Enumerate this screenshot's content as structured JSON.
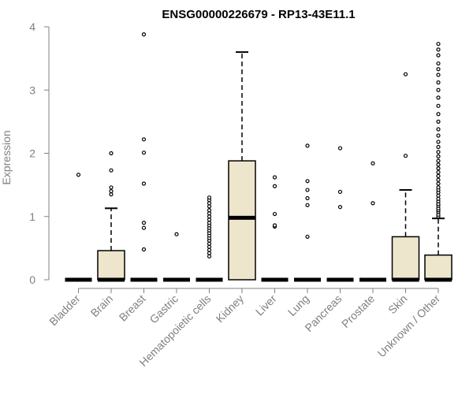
{
  "chart_data": {
    "type": "box",
    "title": "ENSG00000226679 - RP13-43E11.1",
    "xlabel": "",
    "ylabel": "Expression",
    "ylim": [
      0,
      4
    ],
    "yticks": [
      0,
      1,
      2,
      3,
      4
    ],
    "grid": false,
    "colors": {
      "box_fill": "#ede6cd",
      "box_stroke": "#000000",
      "axis": "#808080",
      "title": "#000000"
    },
    "categories": [
      "Bladder",
      "Brain",
      "Breast",
      "Gastric",
      "Hematopoietic cells",
      "Kidney",
      "Liver",
      "Lung",
      "Pancreas",
      "Prostate",
      "Skin",
      "Unknown / Other"
    ],
    "boxes": [
      {
        "q1": 0,
        "median": 0,
        "q3": 0,
        "whisker_low": 0,
        "whisker_high": 0,
        "outliers": [
          1.66
        ]
      },
      {
        "q1": 0,
        "median": 0,
        "q3": 0.46,
        "whisker_low": 0,
        "whisker_high": 1.13,
        "outliers": [
          1.35,
          1.4,
          1.46,
          1.73,
          2.0
        ]
      },
      {
        "q1": 0,
        "median": 0,
        "q3": 0,
        "whisker_low": 0,
        "whisker_high": 0,
        "outliers": [
          0.48,
          0.82,
          0.9,
          1.52,
          2.01,
          2.22,
          3.88
        ]
      },
      {
        "q1": 0,
        "median": 0,
        "q3": 0,
        "whisker_low": 0,
        "whisker_high": 0,
        "outliers": [
          0.72
        ]
      },
      {
        "q1": 0,
        "median": 0,
        "q3": 0,
        "whisker_low": 0,
        "whisker_high": 0,
        "outliers": [
          0.37,
          0.42,
          0.47,
          0.52,
          0.57,
          0.62,
          0.66,
          0.7,
          0.74,
          0.78,
          0.82,
          0.86,
          0.9,
          0.95,
          1.0,
          1.05,
          1.1,
          1.16,
          1.21,
          1.26,
          1.3
        ]
      },
      {
        "q1": 0,
        "median": 0.98,
        "q3": 1.88,
        "whisker_low": 0,
        "whisker_high": 3.6,
        "outliers": []
      },
      {
        "q1": 0,
        "median": 0,
        "q3": 0,
        "whisker_low": 0,
        "whisker_high": 0,
        "outliers": [
          0.84,
          0.86,
          1.04,
          1.48,
          1.62
        ]
      },
      {
        "q1": 0,
        "median": 0,
        "q3": 0,
        "whisker_low": 0,
        "whisker_high": 0,
        "outliers": [
          0.68,
          1.18,
          1.29,
          1.42,
          1.56,
          2.12
        ]
      },
      {
        "q1": 0,
        "median": 0,
        "q3": 0,
        "whisker_low": 0,
        "whisker_high": 0,
        "outliers": [
          1.15,
          1.39,
          2.08
        ]
      },
      {
        "q1": 0,
        "median": 0,
        "q3": 0,
        "whisker_low": 0,
        "whisker_high": 0,
        "outliers": [
          1.21,
          1.84
        ]
      },
      {
        "q1": 0,
        "median": 0,
        "q3": 0.68,
        "whisker_low": 0,
        "whisker_high": 1.42,
        "outliers": [
          1.96,
          3.25
        ]
      },
      {
        "q1": 0,
        "median": 0,
        "q3": 0.39,
        "whisker_low": 0,
        "whisker_high": 0.97,
        "outliers": [
          1.0,
          1.03,
          1.07,
          1.1,
          1.13,
          1.17,
          1.2,
          1.24,
          1.28,
          1.33,
          1.38,
          1.42,
          1.46,
          1.52,
          1.58,
          1.64,
          1.7,
          1.76,
          1.82,
          1.88,
          1.95,
          2.02,
          2.1,
          2.18,
          2.28,
          2.38,
          2.5,
          2.62,
          2.75,
          2.88,
          3.0,
          3.12,
          3.24,
          3.33,
          3.42,
          3.55,
          3.64,
          3.73
        ]
      }
    ]
  }
}
